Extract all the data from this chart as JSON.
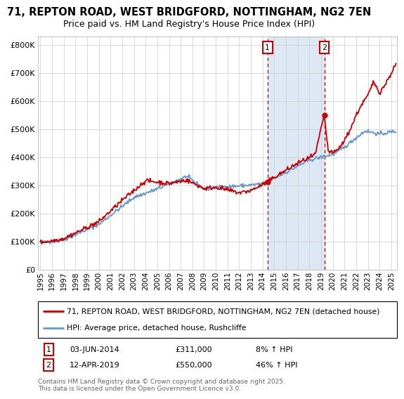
{
  "title1": "71, REPTON ROAD, WEST BRIDGFORD, NOTTINGHAM, NG2 7EN",
  "title2": "Price paid vs. HM Land Registry's House Price Index (HPI)",
  "legend_line1": "71, REPTON ROAD, WEST BRIDGFORD, NOTTINGHAM, NG2 7EN (detached house)",
  "legend_line2": "HPI: Average price, detached house, Rushcliffe",
  "sale1_label": "1",
  "sale1_date": "03-JUN-2014",
  "sale1_price": "£311,000",
  "sale1_hpi": "8% ↑ HPI",
  "sale1_year": 2014.42,
  "sale1_value": 311000,
  "sale2_label": "2",
  "sale2_date": "12-APR-2019",
  "sale2_price": "£550,000",
  "sale2_hpi": "46% ↑ HPI",
  "sale2_year": 2019.28,
  "sale2_value": 550000,
  "red_color": "#cc0000",
  "blue_color": "#6699cc",
  "shade_color": "#dce9f5",
  "footer": "Contains HM Land Registry data © Crown copyright and database right 2025.\nThis data is licensed under the Open Government Licence v3.0.",
  "ylim": [
    0,
    830000
  ],
  "xlim_start": 1994.8,
  "xlim_end": 2025.5,
  "yticks": [
    0,
    100000,
    200000,
    300000,
    400000,
    500000,
    600000,
    700000,
    800000
  ],
  "ytick_labels": [
    "£0",
    "£100K",
    "£200K",
    "£300K",
    "£400K",
    "£500K",
    "£600K",
    "£700K",
    "£800K"
  ],
  "xticks": [
    1995,
    1996,
    1997,
    1998,
    1999,
    2000,
    2001,
    2002,
    2003,
    2004,
    2005,
    2006,
    2007,
    2008,
    2009,
    2010,
    2011,
    2012,
    2013,
    2014,
    2015,
    2016,
    2017,
    2018,
    2019,
    2020,
    2021,
    2022,
    2023,
    2024,
    2025
  ]
}
